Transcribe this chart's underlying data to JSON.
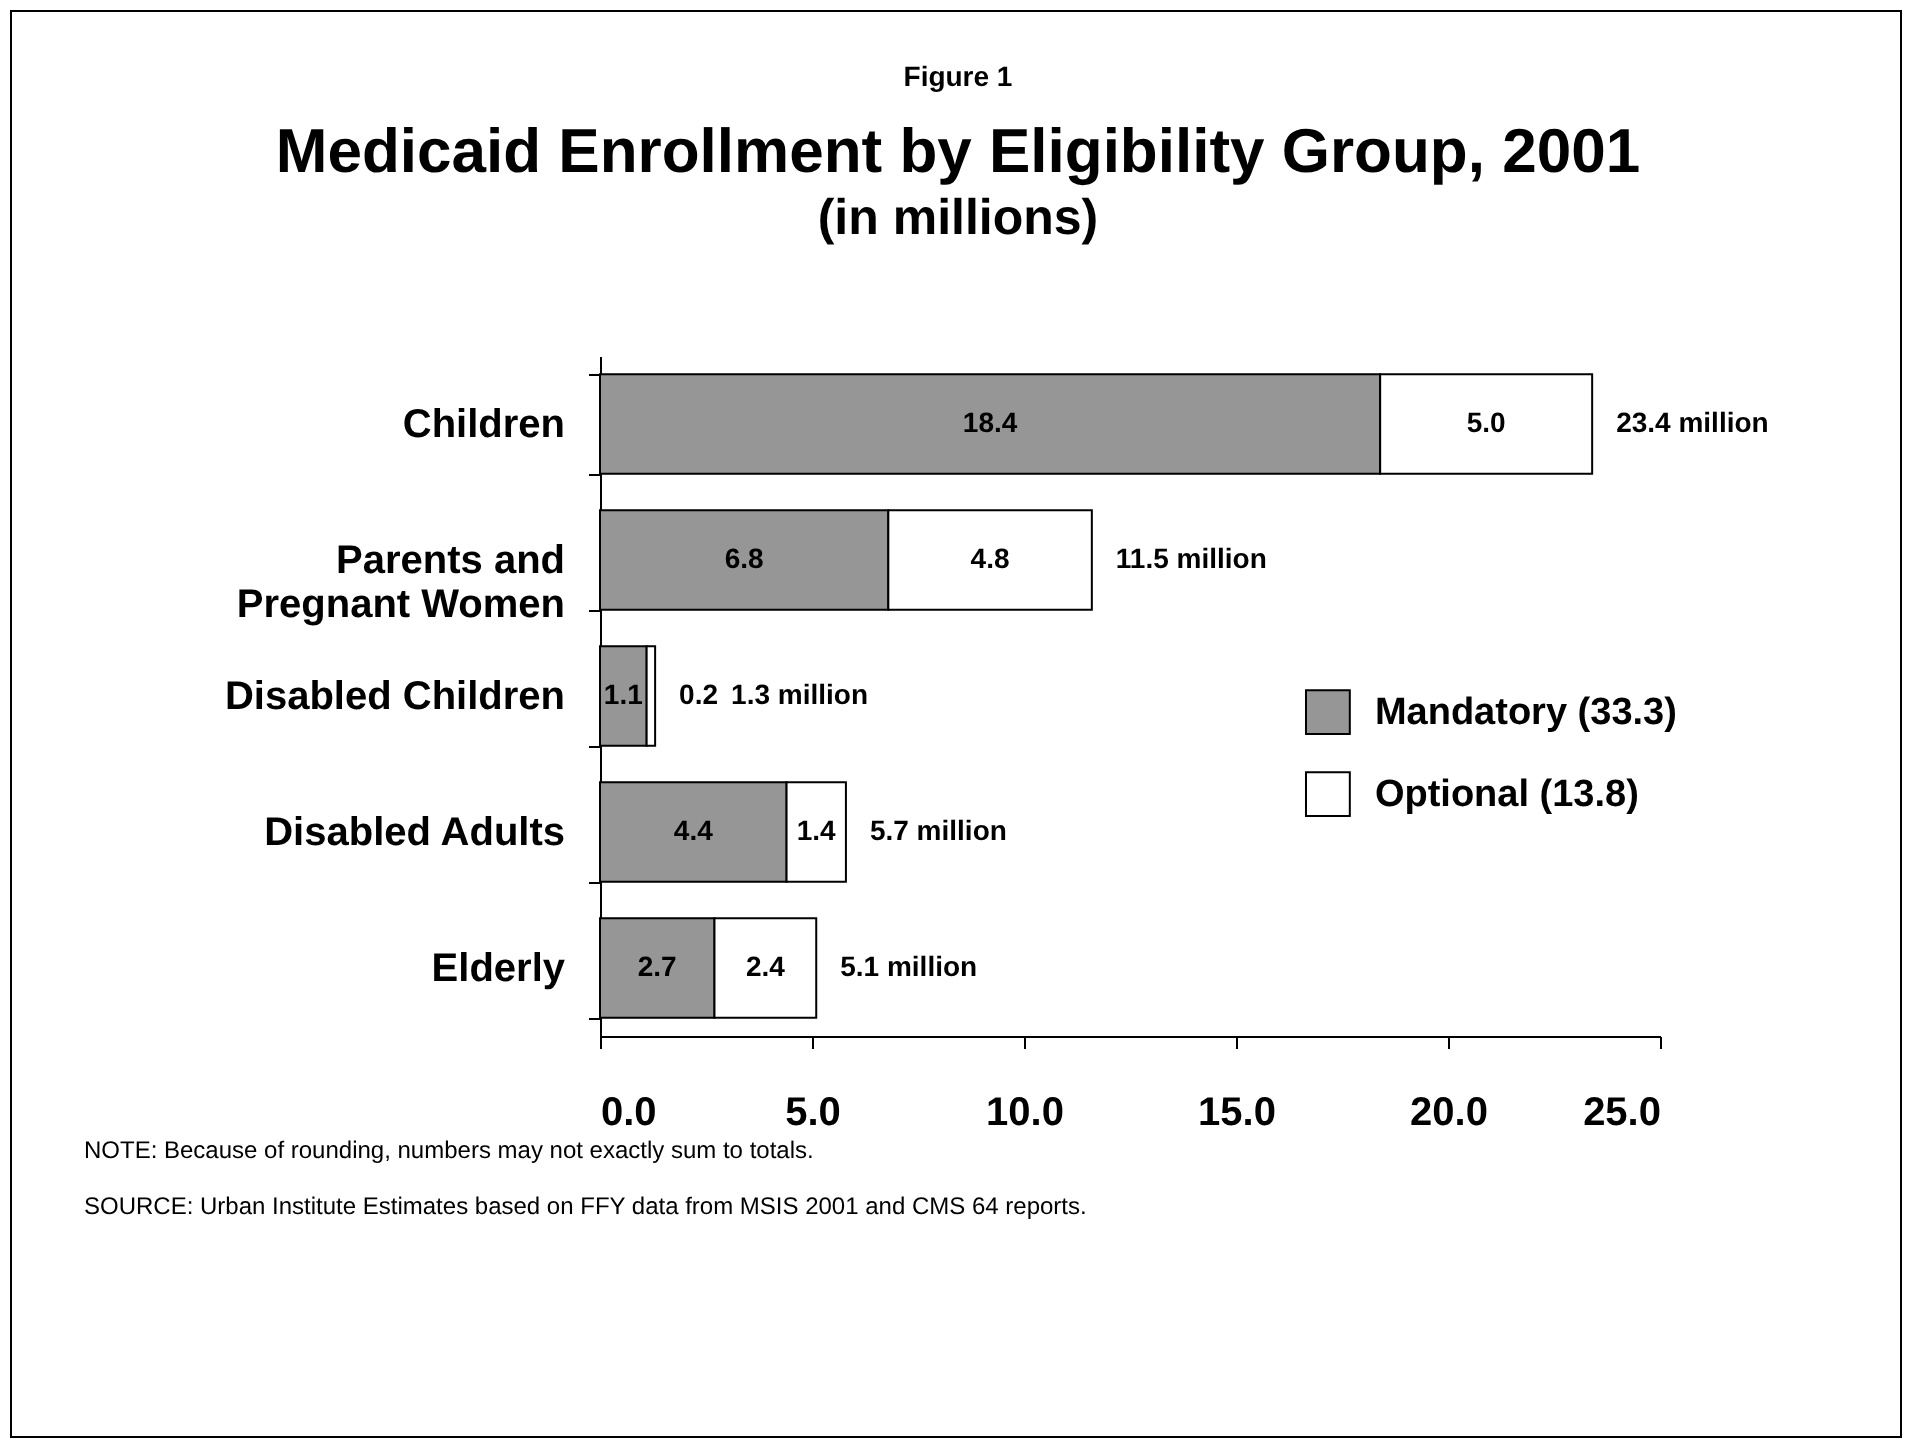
{
  "chart_data": {
    "type": "bar",
    "orientation": "horizontal",
    "stacked": true,
    "title": "Medicaid Enrollment by Eligibility Group, 2001",
    "subtitle": "(in millions)",
    "annotations": [
      "Figure 1",
      "NOTE: Because of rounding, numbers may not exactly sum to totals.",
      "SOURCE: Urban Institute Estimates based on FFY data from MSIS 2001 and CMS 64 reports."
    ],
    "categories": [
      "Children",
      "Parents and Pregnant Women",
      "Disabled Children",
      "Disabled Adults",
      "Elderly"
    ],
    "series": [
      {
        "name": "Mandatory (33.3)",
        "color": "#969696",
        "values": [
          18.4,
          6.8,
          1.1,
          4.4,
          2.7
        ],
        "value_labels": [
          "18.4",
          "6.8",
          "1.1",
          "4.4",
          "2.7"
        ]
      },
      {
        "name": "Optional (13.8)",
        "color": "#ffffff",
        "values": [
          5.0,
          4.8,
          0.2,
          1.4,
          2.4
        ],
        "value_labels": [
          "5.0",
          "4.8",
          "0.2",
          "1.4",
          "2.4"
        ]
      }
    ],
    "totals": [
      "23.4 million",
      "11.5 million",
      "1.3 million",
      "5.7 million",
      "5.1 million"
    ],
    "xlim": [
      0,
      25
    ],
    "xticks": [
      {
        "value": 0,
        "label": "0.0"
      },
      {
        "value": 5,
        "label": "5.0"
      },
      {
        "value": 10,
        "label": "10.0"
      },
      {
        "value": 15,
        "label": "15.0"
      },
      {
        "value": 20,
        "label": "20.0"
      },
      {
        "value": 25,
        "label": "25.0"
      }
    ],
    "grid": false,
    "legend": "right"
  }
}
